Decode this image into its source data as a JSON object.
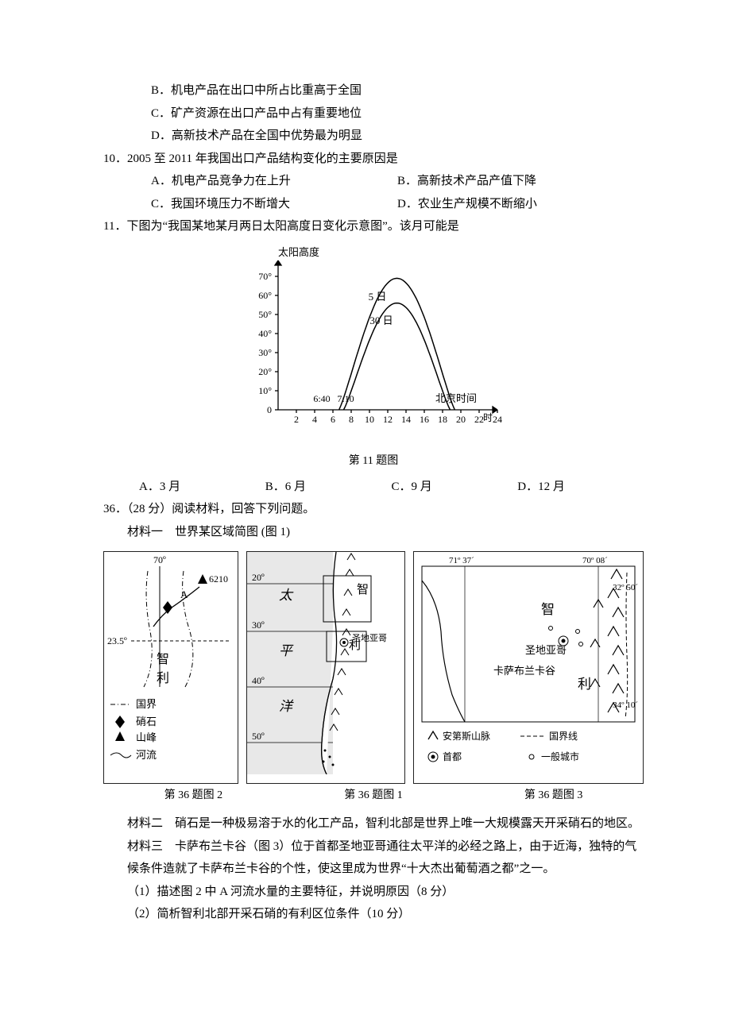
{
  "q_prev_opts": {
    "B": "B．机电产品在出口中所占比重高于全国",
    "C": "C．矿产资源在出口产品中占有重要地位",
    "D": "D．高新技术产品在全国中优势最为明显"
  },
  "q10": {
    "stem": "10．2005 至 2011 年我国出口产品结构变化的主要原因是",
    "A": "A．机电产品竞争力在上升",
    "B": "B．高新技术产品产值下降",
    "C": "C．我国环境压力不断增大",
    "D": "D．农业生产规模不断缩小"
  },
  "q11": {
    "stem": "11．下图为“我国某地某月两日太阳高度日变化示意图”。该月可能是",
    "A": "A．3 月",
    "B": "B．6 月",
    "C": "C．9 月",
    "D": "D．12 月",
    "caption": "第 11 题图"
  },
  "chart11": {
    "y_title": "太阳高度",
    "x_title_right": "北京时间",
    "x_axis_suffix": "时",
    "y_ticks": [
      "0",
      "10°",
      "20°",
      "30°",
      "40°",
      "50°",
      "60°",
      "70°"
    ],
    "x_ticks": [
      "2",
      "4",
      "6",
      "8",
      "10",
      "12",
      "14",
      "16",
      "18",
      "20",
      "22",
      "24"
    ],
    "ylim": [
      0,
      75
    ],
    "xlim": [
      0,
      24
    ],
    "curve5": {
      "label": "5 日",
      "sunrise_h": 6.67,
      "noon_h": 13,
      "sunset_h": 19.33,
      "peak_deg": 69
    },
    "curve30": {
      "label": "30 日",
      "sunrise_h": 7.17,
      "noon_h": 13,
      "sunset_h": 18.83,
      "peak_deg": 56
    },
    "annot": {
      "t640": "6:40",
      "t710": "7:10"
    },
    "axis_color": "#000",
    "tick_fontsize": 12,
    "line_width": 1.5
  },
  "q36": {
    "header": "36．（28 分）阅读材料，回答下列问题。",
    "mat1": "材料一　世界某区域简图 (图 1)",
    "mat2": "材料二　硝石是一种极易溶于水的化工产品，智利北部是世界上唯一大规模露天开采硝石的地区。",
    "mat3": "材料三　卡萨布兰卡谷（图 3）位于首都圣地亚哥通往太平洋的必经之路上，由于近海，独特的气候条件造就了卡萨布兰卡谷的个性，使这里成为世界“十大杰出葡萄酒之都”之一。",
    "sub1": "（1）描述图 2 中 A 河流水量的主要特征，并说明原因（8 分）",
    "sub2": "（2）简析智利北部开采石硝的有利区位条件（10 分）",
    "cap1": "第 36 题图 1",
    "cap2": "第 36 题图 2",
    "cap3": "第 36 题图 3"
  },
  "map2": {
    "lon70": "70º",
    "peak": "6210",
    "lat235": "23.5º",
    "zhi": "智",
    "li": "利",
    "legend": {
      "border": "国界",
      "nitre": "硝石",
      "peak": "山峰",
      "river": "河流"
    }
  },
  "map1": {
    "lat20": "20º",
    "lat30": "30º",
    "lat40": "40º",
    "lat50": "50º",
    "tai": "太",
    "ping": "平",
    "yang": "洋",
    "zhi": "智",
    "li": "利",
    "santi": "圣地亚哥"
  },
  "map3": {
    "lon7137": "71º 37´",
    "lon7008": "70º 08´",
    "lat3250": "32º 50´",
    "lat3410": "34º 10´",
    "zhi": "智",
    "li": "利",
    "santi": "圣地亚哥",
    "casa": "卡萨布兰卡谷",
    "legend": {
      "andes": "安第斯山脉",
      "border": "国界线",
      "capital": "首都",
      "city": "一般城市"
    }
  }
}
